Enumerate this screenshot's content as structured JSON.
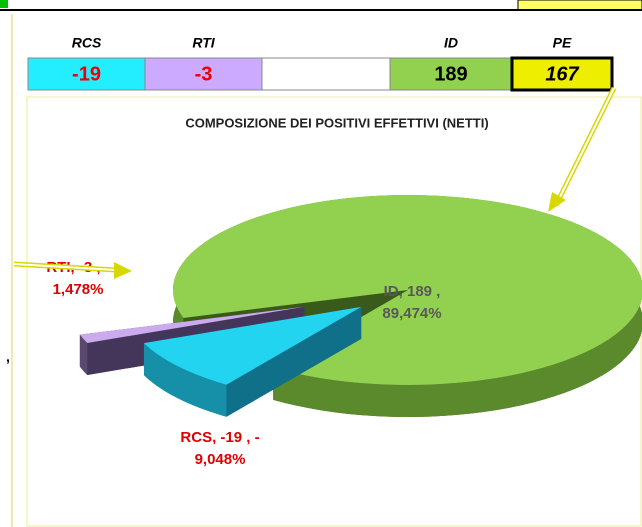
{
  "table": {
    "headers": [
      "RCS",
      "RTI",
      "ID",
      "PE"
    ],
    "values": [
      -19,
      -3,
      189,
      167
    ]
  },
  "fragment": ",",
  "chart_data": {
    "type": "pie3d",
    "title": "COMPOSIZIONE DEI POSITIVI EFFETTIVI (NETTI)",
    "categories": [
      "RCS",
      "RTI",
      "ID"
    ],
    "values": [
      -19,
      -3,
      189
    ],
    "percents": [
      -9.048,
      -1.478,
      89.474
    ],
    "value_labels": [
      [
        "RCS, -19 , -",
        "9,048%"
      ],
      [
        "RTI, -3 , -",
        "1,478%"
      ],
      [
        "ID, 189 ,",
        "89,474%"
      ]
    ],
    "colors": [
      "#22d4f0",
      "#ccaaee",
      "#92d050"
    ]
  }
}
